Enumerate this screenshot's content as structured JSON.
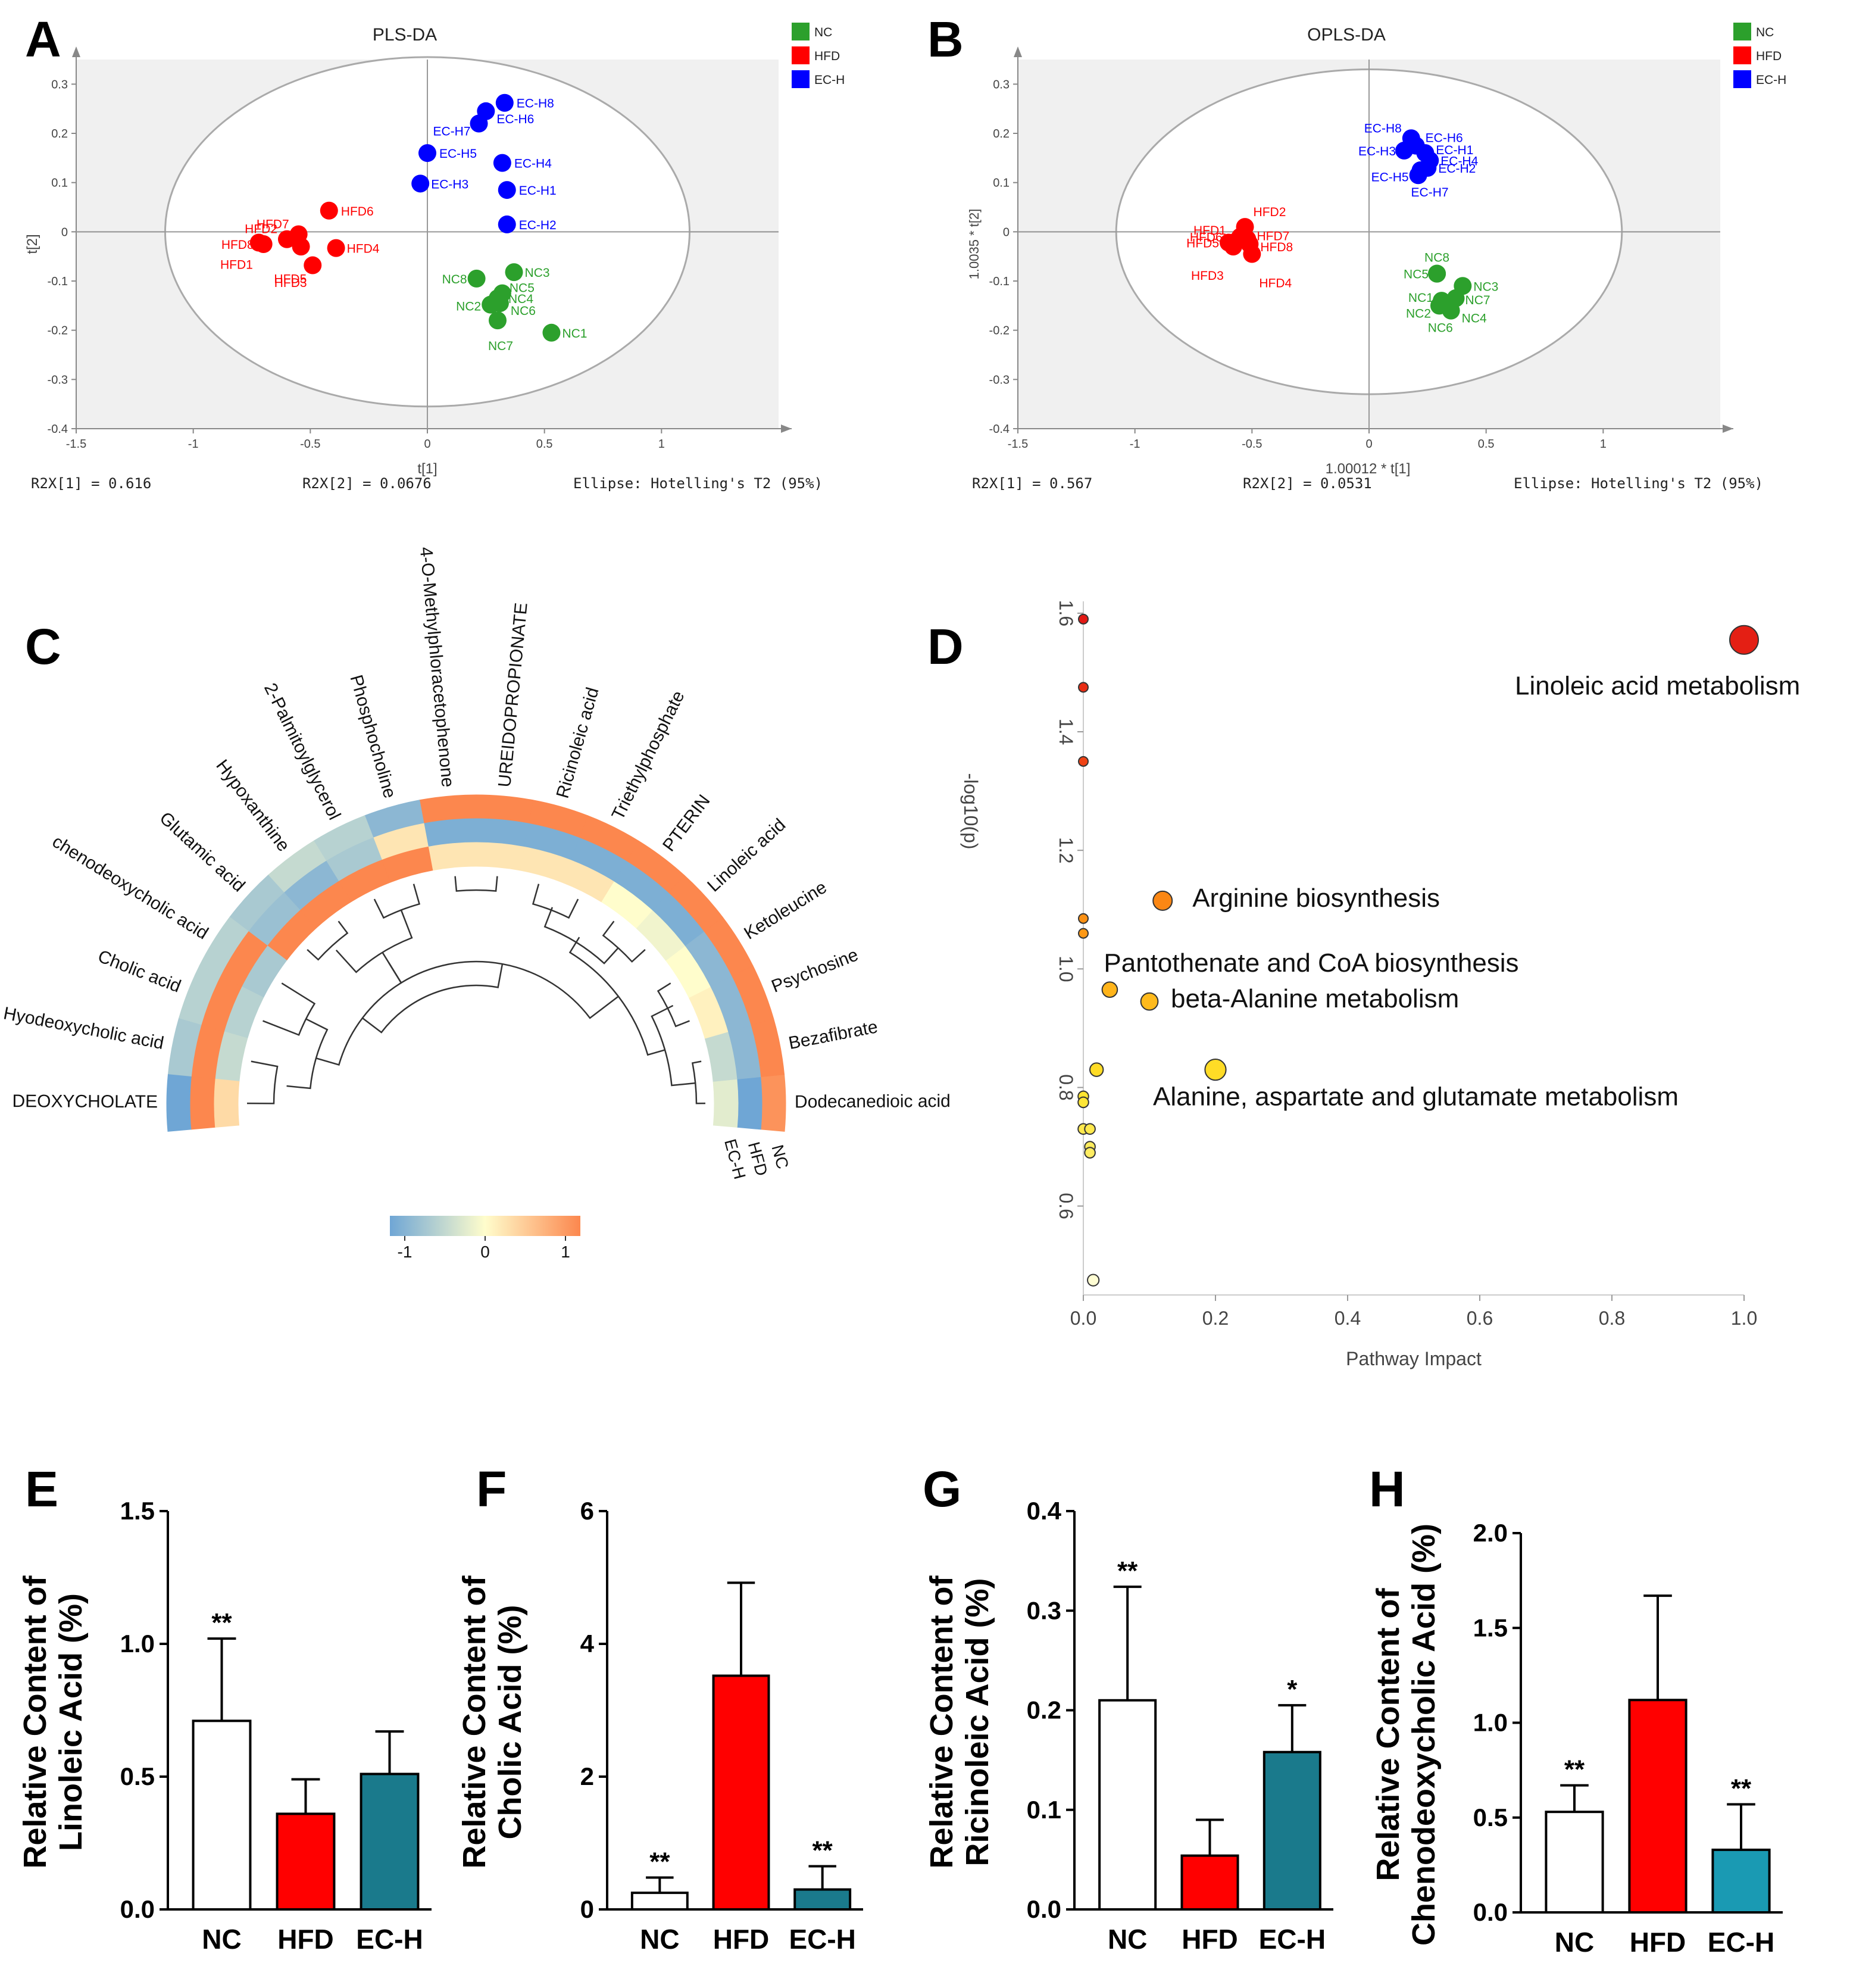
{
  "panels": {
    "A": {
      "letter": "A",
      "title": "PLS-DA",
      "xlabel": "t[1]",
      "ylabel": "t[2]",
      "footer_left": "R2X[1] = 0.616",
      "footer_mid": "R2X[2] = 0.0676",
      "footer_right": "Ellipse: Hotelling's T2 (95%)"
    },
    "B": {
      "letter": "B",
      "title": "OPLS-DA",
      "xlabel": "1.00012 * t[1]",
      "ylabel": "1.0035 * t[2]",
      "footer_left": "R2X[1] = 0.567",
      "footer_mid": "R2X[2] = 0.0531",
      "footer_right": "Ellipse: Hotelling's T2 (95%)"
    },
    "C": {
      "letter": "C"
    },
    "D": {
      "letter": "D"
    },
    "E": {
      "letter": "E"
    },
    "F": {
      "letter": "F"
    },
    "G": {
      "letter": "G"
    },
    "H": {
      "letter": "H"
    }
  },
  "colors": {
    "NC": "#2ca02c",
    "HFD": "#ff0000",
    "EC-H": "#0000ff",
    "teal": "#1a7a8c",
    "ticks": "#555555"
  },
  "chart_data": [
    {
      "id": "A",
      "type": "scatter",
      "title": "PLS-DA",
      "xlabel": "t[1]",
      "ylabel": "t[2]",
      "xlim": [
        -1.5,
        1.5
      ],
      "ylim": [
        -0.4,
        0.35
      ],
      "xticks": [
        -1.5,
        -1,
        -0.5,
        0,
        0.5,
        1
      ],
      "yticks": [
        0.3,
        0.2,
        0.1,
        0,
        -0.1,
        -0.2,
        -0.3,
        -0.4
      ],
      "legend": [
        "NC",
        "HFD",
        "EC-H"
      ],
      "ellipse": {
        "label": "Hotelling's T2 (95%)",
        "cx": 0,
        "cy": 0,
        "rx": 1.12,
        "ry": 0.355
      },
      "series": [
        {
          "name": "NC",
          "points": [
            {
              "label": "NC1",
              "x": 0.53,
              "y": -0.205
            },
            {
              "label": "NC2",
              "x": 0.27,
              "y": -0.148
            },
            {
              "label": "NC3",
              "x": 0.37,
              "y": -0.082
            },
            {
              "label": "NC4",
              "x": 0.3,
              "y": -0.135
            },
            {
              "label": "NC5",
              "x": 0.32,
              "y": -0.125
            },
            {
              "label": "NC6",
              "x": 0.31,
              "y": -0.145
            },
            {
              "label": "NC7",
              "x": 0.3,
              "y": -0.18
            },
            {
              "label": "NC8",
              "x": 0.21,
              "y": -0.095
            }
          ]
        },
        {
          "name": "HFD",
          "points": [
            {
              "label": "HFD1",
              "x": -0.72,
              "y": -0.022
            },
            {
              "label": "HFD2",
              "x": -0.6,
              "y": -0.015
            },
            {
              "label": "HFD3",
              "x": -0.54,
              "y": -0.03
            },
            {
              "label": "HFD4",
              "x": -0.39,
              "y": -0.033
            },
            {
              "label": "HFD5",
              "x": -0.49,
              "y": -0.068
            },
            {
              "label": "HFD6",
              "x": -0.42,
              "y": 0.043
            },
            {
              "label": "HFD7",
              "x": -0.55,
              "y": -0.005
            },
            {
              "label": "HFD8",
              "x": -0.7,
              "y": -0.025
            }
          ]
        },
        {
          "name": "EC-H",
          "points": [
            {
              "label": "EC-H1",
              "x": 0.34,
              "y": 0.085
            },
            {
              "label": "EC-H2",
              "x": 0.34,
              "y": 0.015
            },
            {
              "label": "EC-H3",
              "x": -0.03,
              "y": 0.098
            },
            {
              "label": "EC-H4",
              "x": 0.32,
              "y": 0.14
            },
            {
              "label": "EC-H5",
              "x": 0.0,
              "y": 0.16
            },
            {
              "label": "EC-H6",
              "x": 0.25,
              "y": 0.245
            },
            {
              "label": "EC-H7",
              "x": 0.22,
              "y": 0.22
            },
            {
              "label": "EC-H8",
              "x": 0.33,
              "y": 0.262
            }
          ]
        }
      ],
      "annotations": [
        "R2X[1] = 0.616",
        "R2X[2] = 0.0676"
      ]
    },
    {
      "id": "B",
      "type": "scatter",
      "title": "OPLS-DA",
      "xlabel": "1.00012 * t[1]",
      "ylabel": "1.0035 * t[2]",
      "xlim": [
        -1.5,
        1.5
      ],
      "ylim": [
        -0.4,
        0.35
      ],
      "xticks": [
        -1.5,
        -1,
        -0.5,
        0,
        0.5,
        1
      ],
      "yticks": [
        0.3,
        0.2,
        0.1,
        0,
        -0.1,
        -0.2,
        -0.3,
        -0.4
      ],
      "legend": [
        "NC",
        "HFD",
        "EC-H"
      ],
      "ellipse": {
        "label": "Hotelling's T2 (95%)",
        "cx": 0,
        "cy": 0,
        "rx": 1.08,
        "ry": 0.33
      },
      "series": [
        {
          "name": "NC",
          "points": [
            {
              "label": "NC1",
              "x": 0.31,
              "y": -0.14
            },
            {
              "label": "NC2",
              "x": 0.3,
              "y": -0.15
            },
            {
              "label": "NC3",
              "x": 0.4,
              "y": -0.11
            },
            {
              "label": "NC4",
              "x": 0.35,
              "y": -0.16
            },
            {
              "label": "NC5",
              "x": 0.29,
              "y": -0.085
            },
            {
              "label": "NC6",
              "x": 0.33,
              "y": -0.15
            },
            {
              "label": "NC7",
              "x": 0.37,
              "y": -0.135
            },
            {
              "label": "NC8",
              "x": 0.29,
              "y": -0.085
            }
          ]
        },
        {
          "name": "HFD",
          "points": [
            {
              "label": "HFD1",
              "x": -0.57,
              "y": -0.02
            },
            {
              "label": "HFD2",
              "x": -0.53,
              "y": 0.01
            },
            {
              "label": "HFD3",
              "x": -0.58,
              "y": -0.03
            },
            {
              "label": "HFD4",
              "x": -0.5,
              "y": -0.045
            },
            {
              "label": "HFD5",
              "x": -0.6,
              "y": -0.022
            },
            {
              "label": "HFD6",
              "x": -0.55,
              "y": -0.01
            },
            {
              "label": "HFD7",
              "x": -0.52,
              "y": -0.015
            },
            {
              "label": "HFD8",
              "x": -0.51,
              "y": -0.025
            }
          ]
        },
        {
          "name": "EC-H",
          "points": [
            {
              "label": "EC-H1",
              "x": 0.24,
              "y": 0.16
            },
            {
              "label": "EC-H2",
              "x": 0.25,
              "y": 0.13
            },
            {
              "label": "EC-H3",
              "x": 0.15,
              "y": 0.165
            },
            {
              "label": "EC-H4",
              "x": 0.26,
              "y": 0.145
            },
            {
              "label": "EC-H5",
              "x": 0.21,
              "y": 0.115
            },
            {
              "label": "EC-H6",
              "x": 0.2,
              "y": 0.175
            },
            {
              "label": "EC-H7",
              "x": 0.22,
              "y": 0.125
            },
            {
              "label": "EC-H8",
              "x": 0.18,
              "y": 0.19
            }
          ]
        }
      ],
      "annotations": [
        "R2X[1] = 0.567",
        "R2X[2] = 0.0531"
      ]
    },
    {
      "id": "C",
      "type": "heatmap",
      "rows": [
        "NC",
        "HFD",
        "EC-H"
      ],
      "metabolites": [
        "Dodecanedioic acid",
        "Bezafibrate",
        "Psychosine",
        "Ketoleucine",
        "Linoleic acid",
        "PTERIN",
        "Triethylphosphate",
        "Ricinoleic acid",
        "UREIDOPROPIONATE",
        "4-O-Methylphloracetophenone",
        "Phosphocholine",
        "2-Palmitoylglycerol",
        "Hypoxanthine",
        "Glutamic acid",
        "chenodeoxycholic acid",
        "Cholic acid",
        "Hyodeoxycholic acid",
        "DEOXYCHOLATE"
      ],
      "values": {
        "NC": [
          0.9,
          1.0,
          1.0,
          1.0,
          1.0,
          1.0,
          1.0,
          1.0,
          1.0,
          1.0,
          -0.8,
          -0.5,
          -0.4,
          -0.6,
          -0.5,
          -0.5,
          -0.6,
          -1.0
        ],
        "HFD": [
          -1.0,
          -0.8,
          -0.8,
          -0.8,
          -0.9,
          -0.9,
          -0.9,
          -0.9,
          -0.9,
          -0.9,
          0.2,
          -0.6,
          -0.8,
          -0.7,
          1.0,
          1.0,
          1.0,
          1.0
        ],
        "EC-H": [
          -0.2,
          -0.4,
          0.1,
          0.0,
          -0.1,
          0.0,
          0.2,
          0.2,
          0.2,
          0.2,
          1.0,
          1.0,
          1.0,
          1.0,
          -0.6,
          -0.5,
          -0.4,
          0.3
        ]
      },
      "colorbar": {
        "min": -1,
        "max": 1,
        "ticks": [
          "-1",
          "0",
          "1"
        ]
      }
    },
    {
      "id": "D",
      "type": "scatter",
      "xlabel": "Pathway Impact",
      "ylabel": "-log10(p)",
      "xlim": [
        0.0,
        1.0
      ],
      "ylim": [
        0.45,
        1.62
      ],
      "xticks": [
        "0.0",
        "0.2",
        "0.4",
        "0.6",
        "0.8",
        "1.0"
      ],
      "yticks": [
        "0.6",
        "0.8",
        "1.0",
        "1.2",
        "1.4",
        "1.6"
      ],
      "points": [
        {
          "x": 1.0,
          "y": 1.555,
          "size": 3,
          "label": "Linoleic acid metabolism"
        },
        {
          "x": 0.12,
          "y": 1.115,
          "size": 2,
          "label": "Arginine biosynthesis"
        },
        {
          "x": 0.04,
          "y": 0.965,
          "size": 1.6,
          "label": "Pantothenate and CoA biosynthesis"
        },
        {
          "x": 0.1,
          "y": 0.945,
          "size": 1.8,
          "label": "beta-Alanine metabolism"
        },
        {
          "x": 0.2,
          "y": 0.83,
          "size": 2.2,
          "label": "Alanine, aspartate and glutamate metabolism"
        },
        {
          "x": 0.0,
          "y": 1.59,
          "size": 1,
          "label": ""
        },
        {
          "x": 0.0,
          "y": 1.475,
          "size": 1,
          "label": ""
        },
        {
          "x": 0.0,
          "y": 1.35,
          "size": 1,
          "label": ""
        },
        {
          "x": 0.0,
          "y": 1.085,
          "size": 1,
          "label": ""
        },
        {
          "x": 0.0,
          "y": 1.06,
          "size": 1,
          "label": ""
        },
        {
          "x": 0.02,
          "y": 0.83,
          "size": 1.4,
          "label": ""
        },
        {
          "x": 0.0,
          "y": 0.785,
          "size": 1.1,
          "label": ""
        },
        {
          "x": 0.0,
          "y": 0.775,
          "size": 1.1,
          "label": ""
        },
        {
          "x": 0.0,
          "y": 0.73,
          "size": 1.1,
          "label": ""
        },
        {
          "x": 0.01,
          "y": 0.73,
          "size": 1.1,
          "label": ""
        },
        {
          "x": 0.01,
          "y": 0.7,
          "size": 1.1,
          "label": ""
        },
        {
          "x": 0.01,
          "y": 0.69,
          "size": 1.1,
          "label": ""
        },
        {
          "x": 0.015,
          "y": 0.475,
          "size": 1.2,
          "label": ""
        }
      ]
    },
    {
      "id": "E",
      "type": "bar",
      "categories": [
        "NC",
        "HFD",
        "EC-H"
      ],
      "values": [
        0.71,
        0.36,
        0.51
      ],
      "errors": [
        0.31,
        0.13,
        0.16
      ],
      "significance": [
        "**",
        "",
        ""
      ],
      "ylabel_line1": "Relative Content of",
      "ylabel_line2": "Linoleic Acid (%)",
      "ylim": [
        0,
        1.5
      ],
      "yticks": [
        "0.0",
        "0.5",
        "1.0",
        "1.5"
      ]
    },
    {
      "id": "F",
      "type": "bar",
      "categories": [
        "NC",
        "HFD",
        "EC-H"
      ],
      "values": [
        0.25,
        3.52,
        0.3
      ],
      "errors": [
        0.23,
        1.4,
        0.35
      ],
      "significance": [
        "**",
        "",
        "**"
      ],
      "ylabel_line1": "Relative Content of",
      "ylabel_line2": "Cholic Acid (%)",
      "ylim": [
        0,
        6
      ],
      "yticks": [
        "0",
        "2",
        "4",
        "6"
      ]
    },
    {
      "id": "G",
      "type": "bar",
      "categories": [
        "NC",
        "HFD",
        "EC-H"
      ],
      "values": [
        0.21,
        0.054,
        0.158
      ],
      "errors": [
        0.114,
        0.036,
        0.047
      ],
      "significance": [
        "**",
        "",
        "*"
      ],
      "ylabel_line1": "Relative Content of",
      "ylabel_line2": "Ricinoleic Acid (%)",
      "ylim": [
        0,
        0.4
      ],
      "yticks": [
        "0.0",
        "0.1",
        "0.2",
        "0.3",
        "0.4"
      ]
    },
    {
      "id": "H",
      "type": "bar",
      "categories": [
        "NC",
        "HFD",
        "EC-H"
      ],
      "values": [
        0.53,
        1.12,
        0.33
      ],
      "errors": [
        0.14,
        0.55,
        0.24
      ],
      "significance": [
        "**",
        "",
        "**"
      ],
      "ylabel_line1": "Relative Content of",
      "ylabel_line2": "Chenodeoxycholic Acid (%)",
      "ylim": [
        0,
        2.0
      ],
      "yticks": [
        "0.0",
        "0.5",
        "1.0",
        "1.5",
        "2.0"
      ]
    }
  ]
}
